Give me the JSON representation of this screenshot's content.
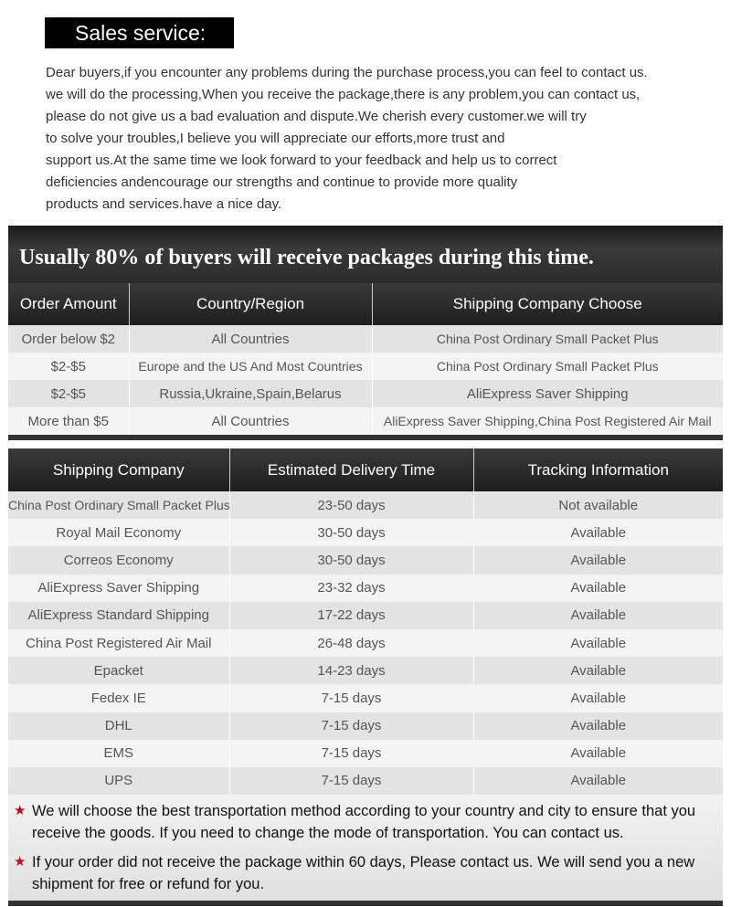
{
  "header": {
    "title": "Sales service:"
  },
  "intro": {
    "lines": [
      "Dear buyers,if you encounter any problems during the purchase process,you can feel to contact us.",
      "we will do the processing,When you receive the package,there is any problem,you can contact us,",
      "please do not give us a bad evaluation and dispute.We cherish every customer.we will try",
      "to solve your troubles,I believe you will appreciate our efforts,more trust and",
      "support us.At the same time we look forward to your feedback and help us to correct",
      "deficiencies andencourage our strengths and continue to provide more quality",
      "products and services.have a nice day."
    ]
  },
  "order_table": {
    "title": "Usually 80% of buyers will receive packages during this time.",
    "headers": [
      "Order Amount",
      "Country/Region",
      "Shipping Company Choose"
    ],
    "rows": [
      [
        "Order below $2",
        "All Countries",
        "China Post Ordinary Small Packet Plus"
      ],
      [
        "$2-$5",
        "Europe and the US And Most Countries",
        "China Post Ordinary Small Packet Plus"
      ],
      [
        "$2-$5",
        "Russia,Ukraine,Spain,Belarus",
        "AliExpress Saver Shipping"
      ],
      [
        "More than $5",
        "All Countries",
        "AliExpress Saver Shipping,China Post Registered Air Mail"
      ]
    ]
  },
  "shipping_table": {
    "headers": [
      "Shipping Company",
      "Estimated Delivery Time",
      "Tracking Information"
    ],
    "rows": [
      [
        "China Post Ordinary Small Packet Plus",
        "23-50 days",
        "Not available"
      ],
      [
        "Royal Mail Economy",
        "30-50 days",
        "Available"
      ],
      [
        "Correos Economy",
        "30-50 days",
        "Available"
      ],
      [
        "AliExpress Saver Shipping",
        "23-32 days",
        "Available"
      ],
      [
        "AliExpress Standard Shipping",
        "17-22 days",
        "Available"
      ],
      [
        "China Post Registered Air Mail",
        "26-48 days",
        "Available"
      ],
      [
        "Epacket",
        "14-23 days",
        "Available"
      ],
      [
        "Fedex IE",
        "7-15 days",
        "Available"
      ],
      [
        "DHL",
        "7-15 days",
        "Available"
      ],
      [
        "EMS",
        "7-15 days",
        "Available"
      ],
      [
        "UPS",
        "7-15 days",
        "Available"
      ]
    ]
  },
  "notes": {
    "star_icon": "★",
    "star_color": "#d0021b",
    "items": [
      "We will choose the best transportation method according to your country and city to ensure that you receive the goods. If you need to change the mode of transportation. You can contact us.",
      "If your order did not receive the package within 60 days, Please contact us. We will send you a new shipment for free or refund for you."
    ]
  }
}
